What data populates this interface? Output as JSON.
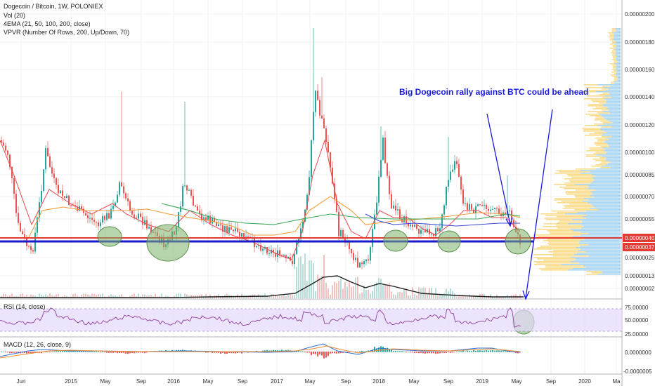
{
  "header": {
    "title": "Dogecoin / Bitcoin, 1W, POLONIEX",
    "vol": "Vol (20)",
    "ema": "4EMA (21, 50, 100, 200, close)",
    "vpvr": "VPVR (Number Of Rows, 200, Up/Down, 70)"
  },
  "annotation": "Big Dogecoin rally against BTC could be ahead",
  "rsi_title": "RSI (14, close)",
  "macd_title": "MACD (12, 26, close, 9)",
  "price_axis": [
    "0.00000200",
    "0.00000180",
    "0.00000160",
    "0.00000140",
    "0.00000120",
    "0.00000100",
    "0.00000085",
    "0.00000070",
    "0.00000055",
    "0.00000040",
    "0.00000025",
    "0.00000013",
    "0.00000002"
  ],
  "price_badges": {
    "red": "0.00000040",
    "blue": "0.00000037"
  },
  "rsi_axis": [
    "75.00000",
    "50.00000",
    "25.00000"
  ],
  "macd_axis": [
    "0.0000000",
    "-0.0000005"
  ],
  "time_axis": [
    "Jun",
    "2015",
    "May",
    "Sep",
    "2016",
    "May",
    "Sep",
    "2017",
    "May",
    "Sep",
    "2018",
    "May",
    "Sep",
    "2019",
    "May",
    "Sep",
    "2020",
    "Ma"
  ],
  "colors": {
    "up": "#26a69a",
    "down": "#ef5350",
    "support_red": "#e53935",
    "support_blue": "#1a1acd",
    "annot": "#1a1adf",
    "ellipse": "#7cb36a"
  },
  "chart_data": {
    "type": "candlestick",
    "title": "Dogecoin / Bitcoin, 1W, POLONIEX",
    "x_ticks": [
      "Jun",
      "2015",
      "May",
      "Sep",
      "2016",
      "May",
      "Sep",
      "2017",
      "May",
      "Sep",
      "2018",
      "May",
      "Sep",
      "2019",
      "May",
      "Sep",
      "2020",
      "Ma"
    ],
    "y_ticks": [
      "0.00000200",
      "0.00000180",
      "0.00000160",
      "0.00000140",
      "0.00000120",
      "0.00000100",
      "0.00000085",
      "0.00000070",
      "0.00000055",
      "0.00000040",
      "0.00000025",
      "0.00000013",
      "0.00000002"
    ],
    "support_levels": [
      4e-07,
      3.7e-07
    ],
    "close_approx": [
      {
        "x": "Jun 2014",
        "y": 9.5e-07
      },
      {
        "x": "2015",
        "y": 6e-07
      },
      {
        "x": "May 2015",
        "y": 4.5e-07
      },
      {
        "x": "2016",
        "y": 3.2e-07
      },
      {
        "x": "May 2016",
        "y": 5e-07
      },
      {
        "x": "2017",
        "y": 2.2e-07
      },
      {
        "x": "May 2017",
        "y": 1.5e-06
      },
      {
        "x": "Sep 2017",
        "y": 2.2e-07
      },
      {
        "x": "2018",
        "y": 8.5e-07
      },
      {
        "x": "May 2018",
        "y": 4.5e-07
      },
      {
        "x": "Sep 2018",
        "y": 4e-07
      },
      {
        "x": "2019",
        "y": 6e-07
      },
      {
        "x": "May 2019",
        "y": 3.7e-07
      }
    ],
    "rsi_ylim": [
      25,
      75
    ],
    "legend": [
      "Vol (20)",
      "4EMA (21, 50, 100, 200, close)",
      "VPVR (Number Of Rows, 200, Up/Down, 70)"
    ]
  }
}
